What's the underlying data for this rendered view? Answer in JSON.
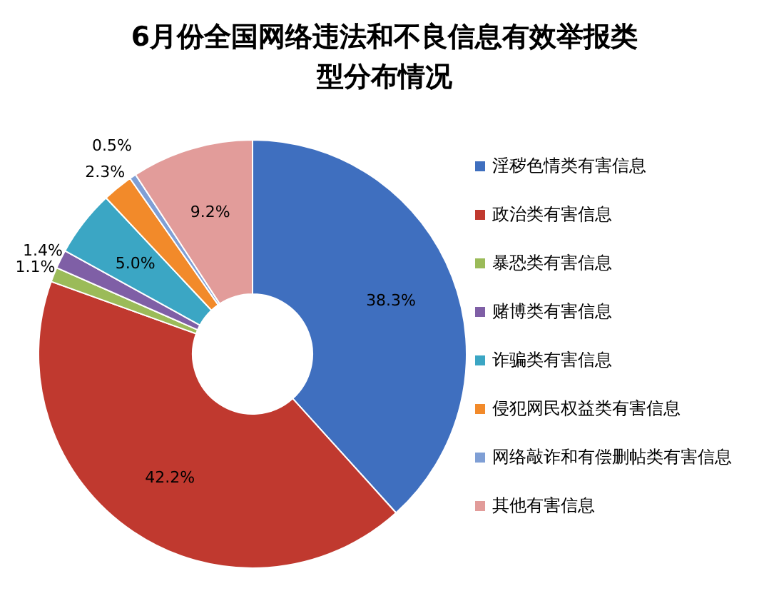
{
  "chart_data": {
    "type": "donut",
    "title": "6月份全国网络违法和不良信息有效举报类型分布情况",
    "categories": [
      "淫秽色情类有害信息",
      "政治类有害信息",
      "暴恐类有害信息",
      "赌博类有害信息",
      "诈骗类有害信息",
      "侵犯网民权益类有害信息",
      "网络敲诈和有偿删帖类有害信息",
      "其他有害信息"
    ],
    "values": [
      38.3,
      42.2,
      1.1,
      1.4,
      5.0,
      2.3,
      0.5,
      9.2
    ],
    "colors": [
      "#3f6fbf",
      "#c0392f",
      "#9bbb59",
      "#7f5fa6",
      "#3ba6c4",
      "#f28a2a",
      "#7f9fd5",
      "#e29c9a"
    ],
    "value_labels": [
      "38.3%",
      "42.2%",
      "1.1%",
      "1.4%",
      "5.0%",
      "2.3%",
      "0.5%",
      "9.2%"
    ],
    "legend": "right"
  }
}
